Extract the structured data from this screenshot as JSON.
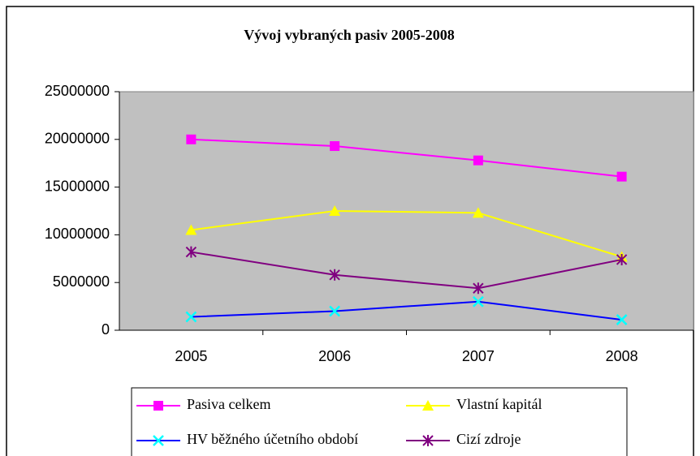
{
  "chart_data": {
    "type": "line",
    "title": "Vývoj vybraných pasiv 2005-2008",
    "categories": [
      "2005",
      "2006",
      "2007",
      "2008"
    ],
    "series": [
      {
        "name": "Pasiva celkem",
        "color": "#ff00ff",
        "marker": "square",
        "values": [
          20000000,
          19300000,
          17800000,
          16100000
        ]
      },
      {
        "name": "Vlastní kapitál",
        "color": "#ffff00",
        "marker": "triangle",
        "values": [
          10500000,
          12500000,
          12300000,
          7700000
        ]
      },
      {
        "name": "HV běžného účetního období",
        "color": "#0000ff",
        "marker": "x",
        "marker_color": "#00ffff",
        "values": [
          1400000,
          2000000,
          3000000,
          1100000
        ]
      },
      {
        "name": "Cizí zdroje",
        "color": "#800080",
        "marker": "asterisk",
        "values": [
          8200000,
          5800000,
          4400000,
          7400000
        ]
      }
    ],
    "ylim": [
      0,
      25000000
    ],
    "yticks": [
      0,
      5000000,
      10000000,
      15000000,
      20000000,
      25000000
    ],
    "plot_background": "#c0c0c0",
    "legend": "bottom"
  }
}
